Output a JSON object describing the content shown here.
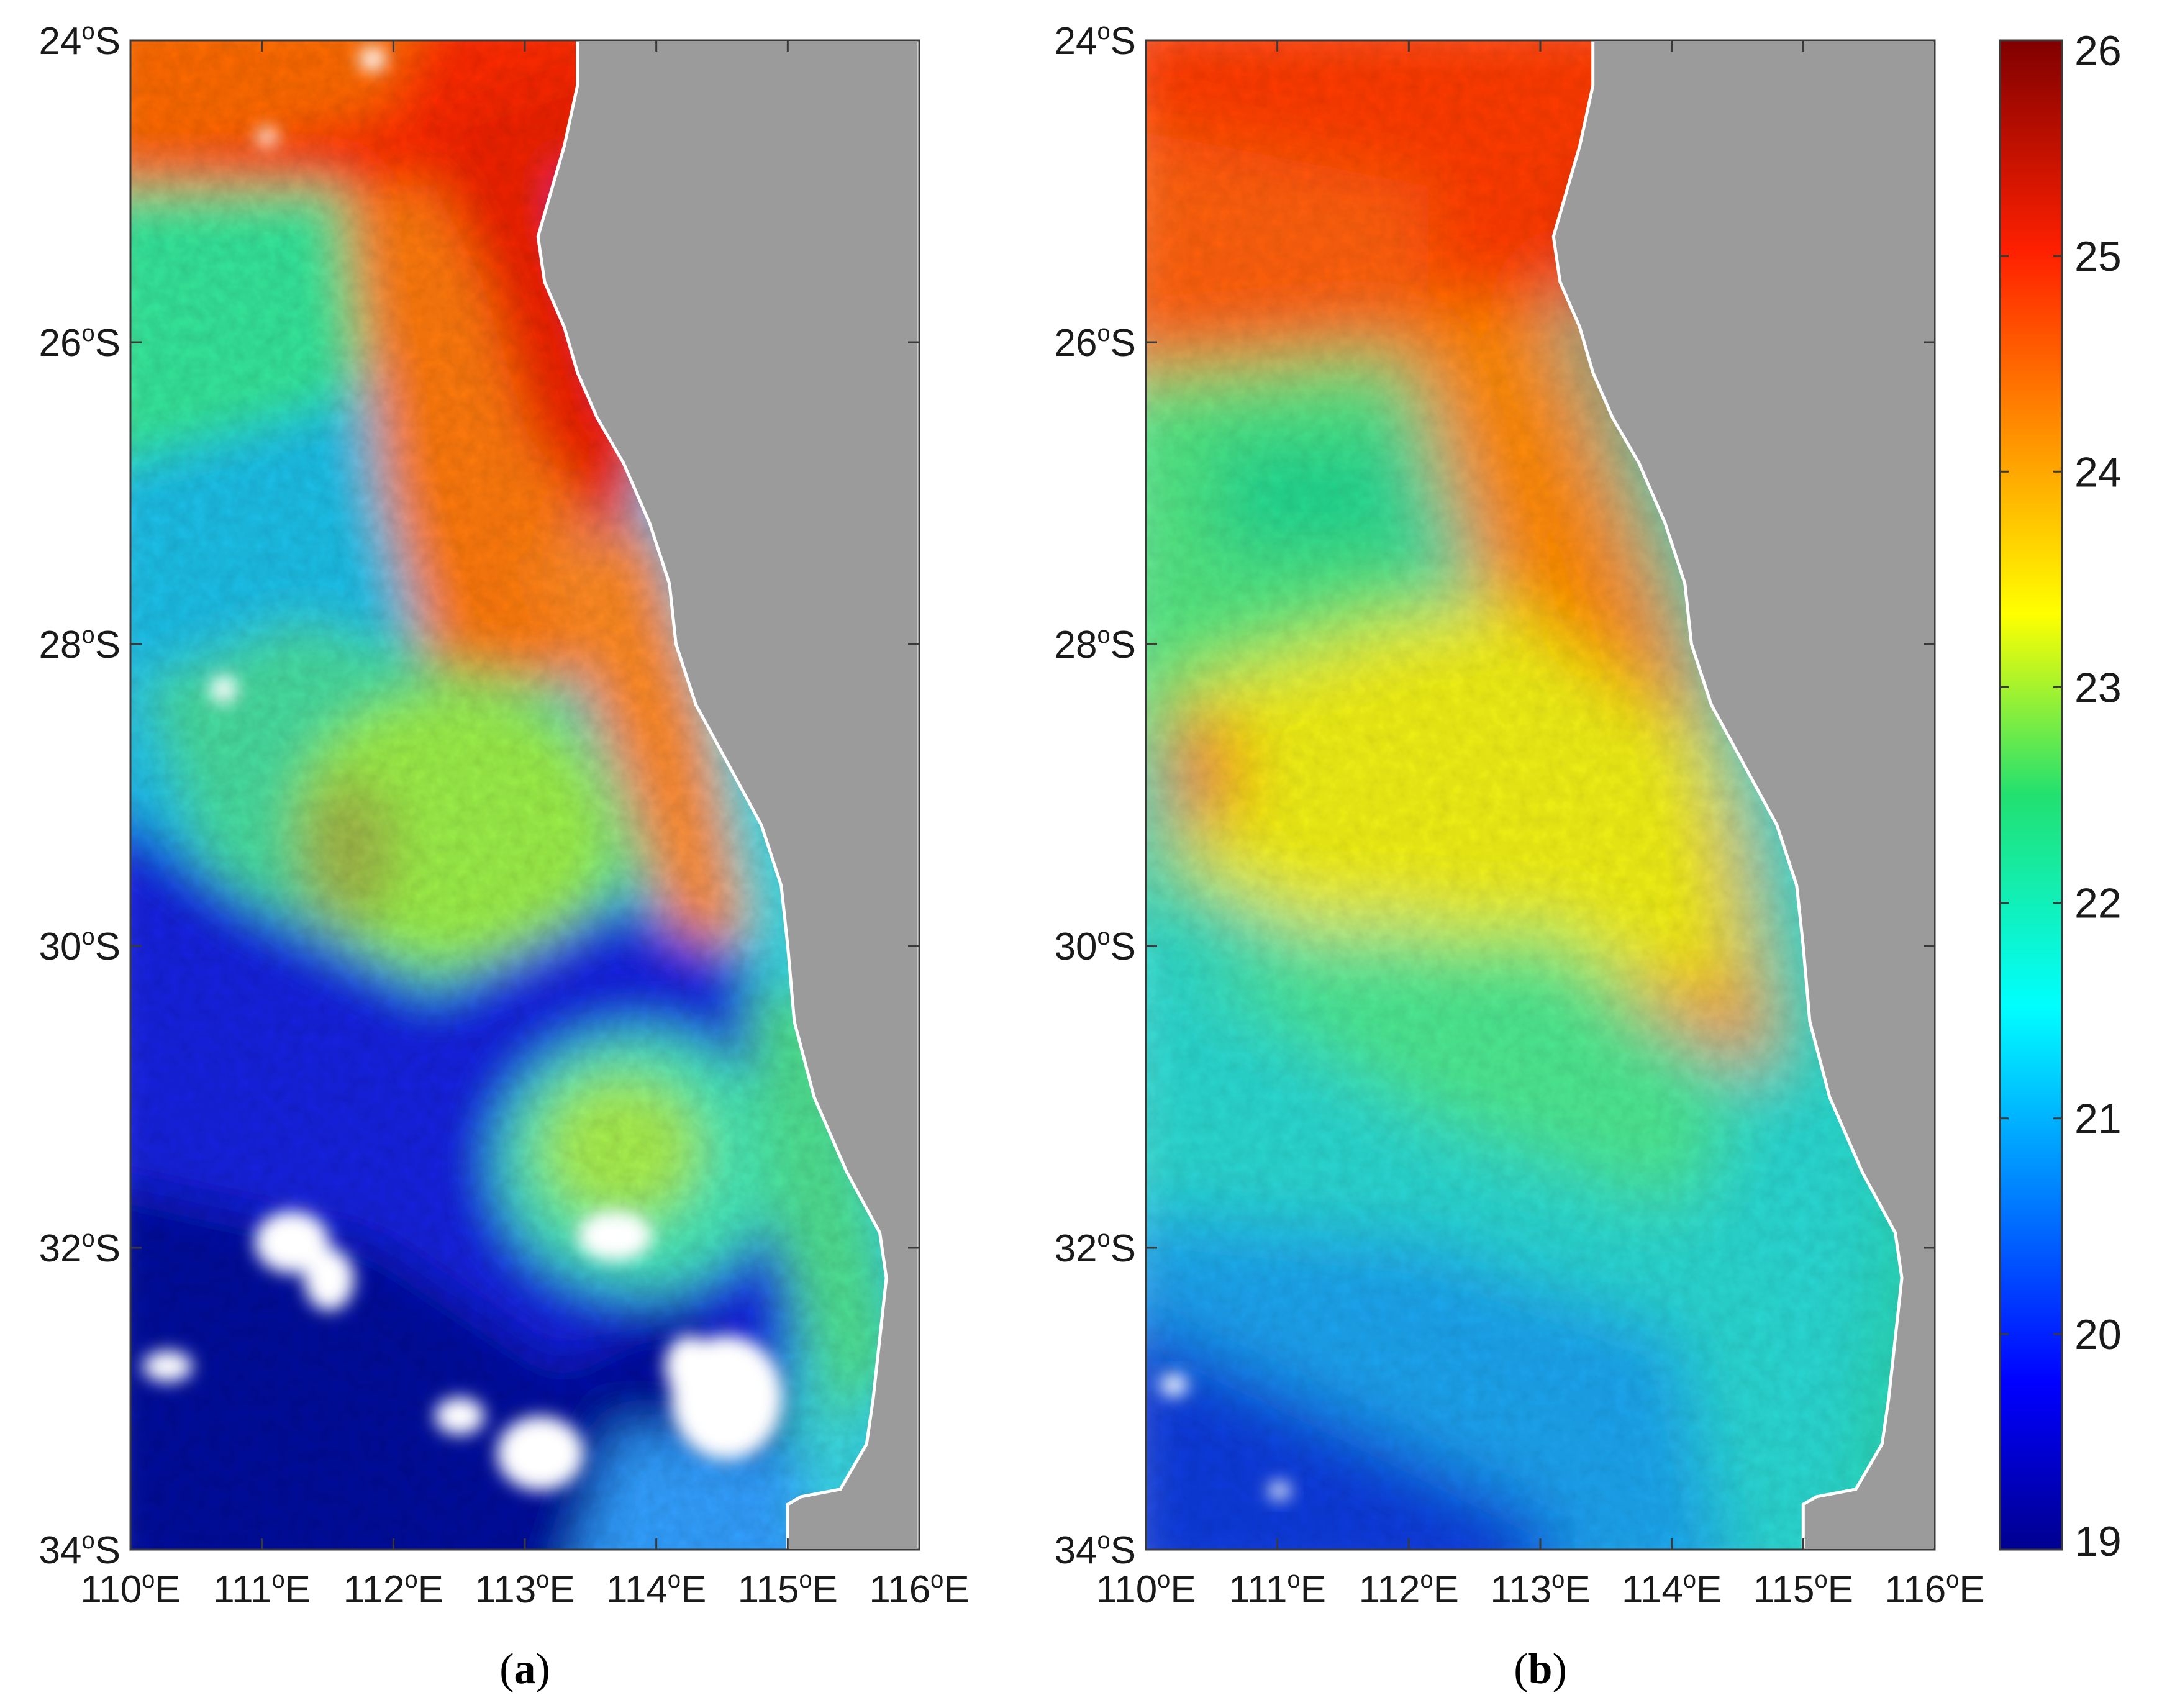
{
  "colors": {
    "land": "#9b9b9b",
    "coastline": "#ffffff",
    "frame": "#3a3a3a",
    "cloud": "#ffffff"
  },
  "colorbar": {
    "min": 19,
    "max": 26,
    "tick_labels": [
      "19",
      "20",
      "21",
      "22",
      "23",
      "24",
      "25",
      "26"
    ],
    "colormap": "jet"
  },
  "axes": {
    "lon_range": [
      110,
      116
    ],
    "lat_range": [
      -34,
      -24
    ],
    "x_ticks": [
      {
        "value": 110,
        "label": "110°E"
      },
      {
        "value": 111,
        "label": "111°E"
      },
      {
        "value": 112,
        "label": "112°E"
      },
      {
        "value": 113,
        "label": "113°E"
      },
      {
        "value": 114,
        "label": "114°E"
      },
      {
        "value": 115,
        "label": "115°E"
      },
      {
        "value": 116,
        "label": "116°E"
      }
    ],
    "y_ticks": [
      {
        "value": -24,
        "label": "24°S"
      },
      {
        "value": -26,
        "label": "26°S"
      },
      {
        "value": -28,
        "label": "28°S"
      },
      {
        "value": -30,
        "label": "30°S"
      },
      {
        "value": -32,
        "label": "32°S"
      },
      {
        "value": -34,
        "label": "34°S"
      }
    ]
  },
  "panels": [
    {
      "id": "a",
      "caption_letter": "a"
    },
    {
      "id": "b",
      "caption_letter": "b"
    }
  ],
  "coastline": [
    [
      113.4,
      -24.0
    ],
    [
      113.4,
      -24.3
    ],
    [
      113.3,
      -24.7
    ],
    [
      113.2,
      -25.0
    ],
    [
      113.1,
      -25.3
    ],
    [
      113.15,
      -25.6
    ],
    [
      113.3,
      -25.9
    ],
    [
      113.4,
      -26.2
    ],
    [
      113.55,
      -26.5
    ],
    [
      113.75,
      -26.8
    ],
    [
      113.95,
      -27.2
    ],
    [
      114.1,
      -27.6
    ],
    [
      114.15,
      -28.0
    ],
    [
      114.3,
      -28.4
    ],
    [
      114.55,
      -28.8
    ],
    [
      114.8,
      -29.2
    ],
    [
      114.95,
      -29.6
    ],
    [
      115.0,
      -30.0
    ],
    [
      115.05,
      -30.5
    ],
    [
      115.2,
      -31.0
    ],
    [
      115.45,
      -31.5
    ],
    [
      115.7,
      -31.9
    ],
    [
      115.75,
      -32.2
    ],
    [
      115.7,
      -32.6
    ],
    [
      115.65,
      -33.0
    ],
    [
      115.6,
      -33.3
    ],
    [
      115.4,
      -33.6
    ],
    [
      115.1,
      -33.65
    ],
    [
      115.0,
      -33.7
    ],
    [
      115.0,
      -34.0
    ],
    [
      116.0,
      -34.0
    ],
    [
      116.0,
      -24.0
    ]
  ]
}
